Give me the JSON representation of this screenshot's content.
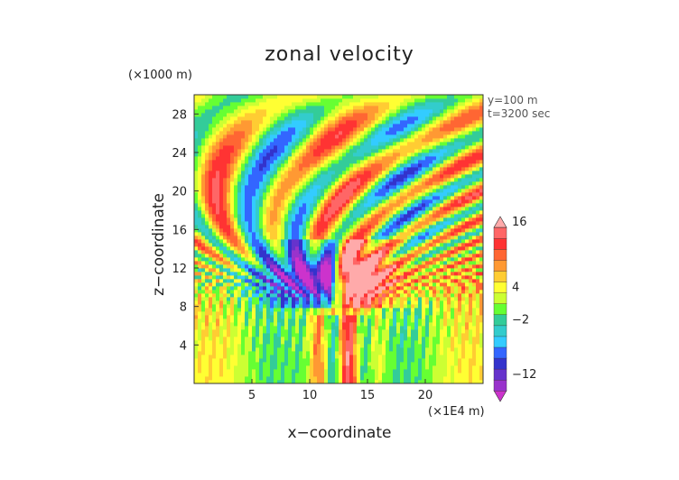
{
  "chart_data": {
    "type": "heatmap",
    "title": "zonal velocity",
    "xlabel": "x−coordinate",
    "ylabel": "z−coordinate",
    "x_unit": "(×1E4 m)",
    "y_unit": "(×1000 m)",
    "annotations": [
      "y=100 m",
      "t=3200 sec"
    ],
    "xlim": [
      0,
      25
    ],
    "ylim": [
      0,
      30
    ],
    "x_ticks": [
      5,
      10,
      15,
      20
    ],
    "y_ticks": [
      4,
      8,
      12,
      16,
      20,
      24,
      28
    ],
    "colorbar": {
      "tick_values": [
        16,
        4,
        -2,
        -12
      ],
      "tick_labels": [
        "16",
        "4",
        "−2",
        "−12"
      ],
      "levels": [
        -16,
        -14,
        -12,
        -10,
        -8,
        -6,
        -4,
        -2,
        0,
        2,
        4,
        6,
        8,
        10,
        12,
        14,
        16
      ],
      "colors": [
        "#cc33cc",
        "#9933cc",
        "#6633cc",
        "#3333cc",
        "#3366ff",
        "#33ccff",
        "#33cccc",
        "#33cc99",
        "#66ff33",
        "#ccff33",
        "#ffff33",
        "#ffcc33",
        "#ff9933",
        "#ff6633",
        "#ff3333",
        "#ff6666",
        "#ffaaaa"
      ]
    }
  }
}
